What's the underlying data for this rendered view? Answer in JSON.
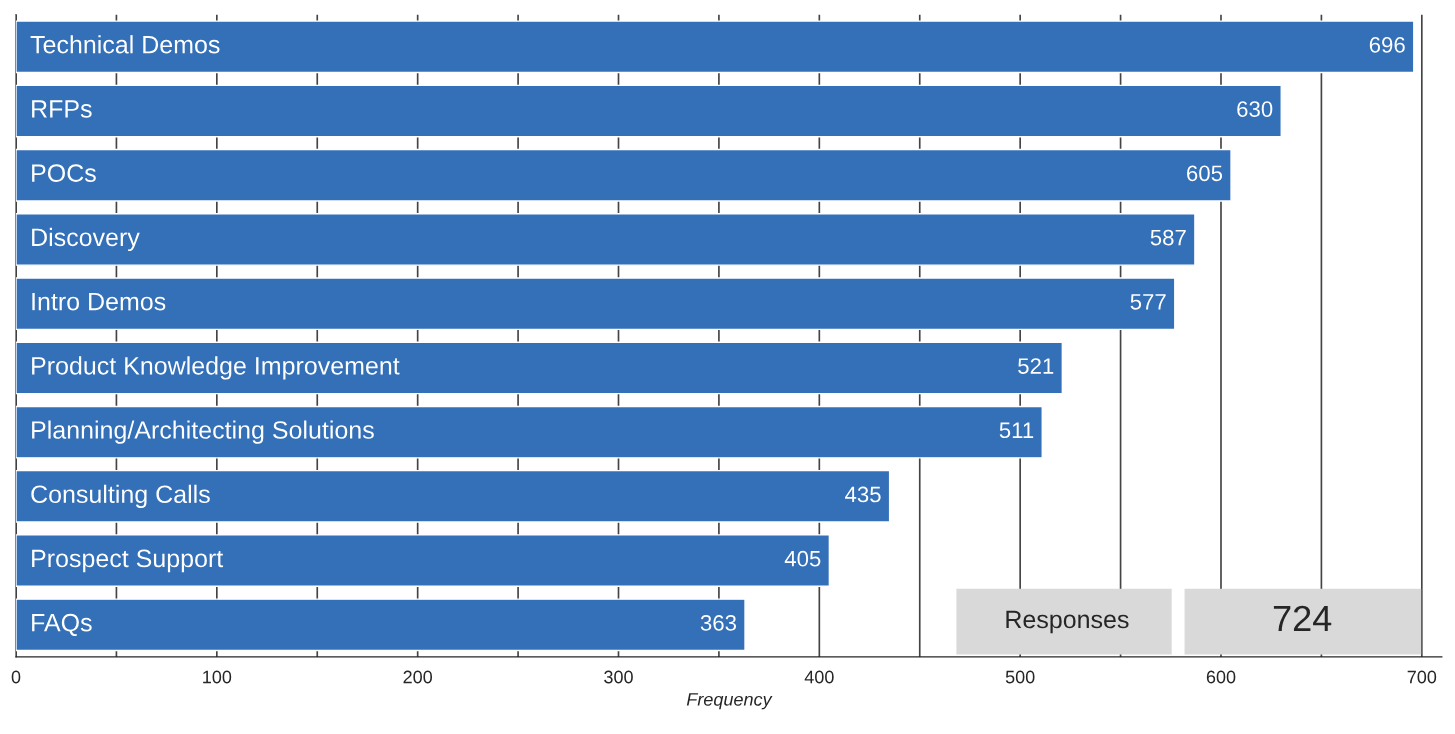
{
  "chart_data": {
    "type": "bar",
    "orientation": "horizontal",
    "xlabel": "Frequency",
    "categories": [
      "Technical Demos",
      "RFPs",
      "POCs",
      "Discovery",
      "Intro Demos",
      "Product Knowledge Improvement",
      "Planning/Architecting Solutions",
      "Consulting Calls",
      "Prospect Support",
      "FAQs"
    ],
    "values": [
      696,
      630,
      605,
      587,
      577,
      521,
      511,
      435,
      405,
      363
    ],
    "color": "#3470b8",
    "data_labels": true,
    "grid": "x",
    "tick_labels": "x",
    "xlim": [
      0,
      710
    ],
    "xticks": [
      0,
      {
        "value": 50,
        "label": null
      },
      100,
      {
        "value": 150,
        "label": null
      },
      200,
      {
        "value": 250,
        "label": null
      },
      300,
      {
        "value": 350,
        "label": null
      },
      400,
      {
        "value": 450,
        "label": null
      },
      500,
      {
        "value": 550,
        "label": null
      },
      600,
      {
        "value": 650,
        "label": null
      },
      700
    ],
    "annotations": [
      "Responses",
      "724"
    ]
  }
}
